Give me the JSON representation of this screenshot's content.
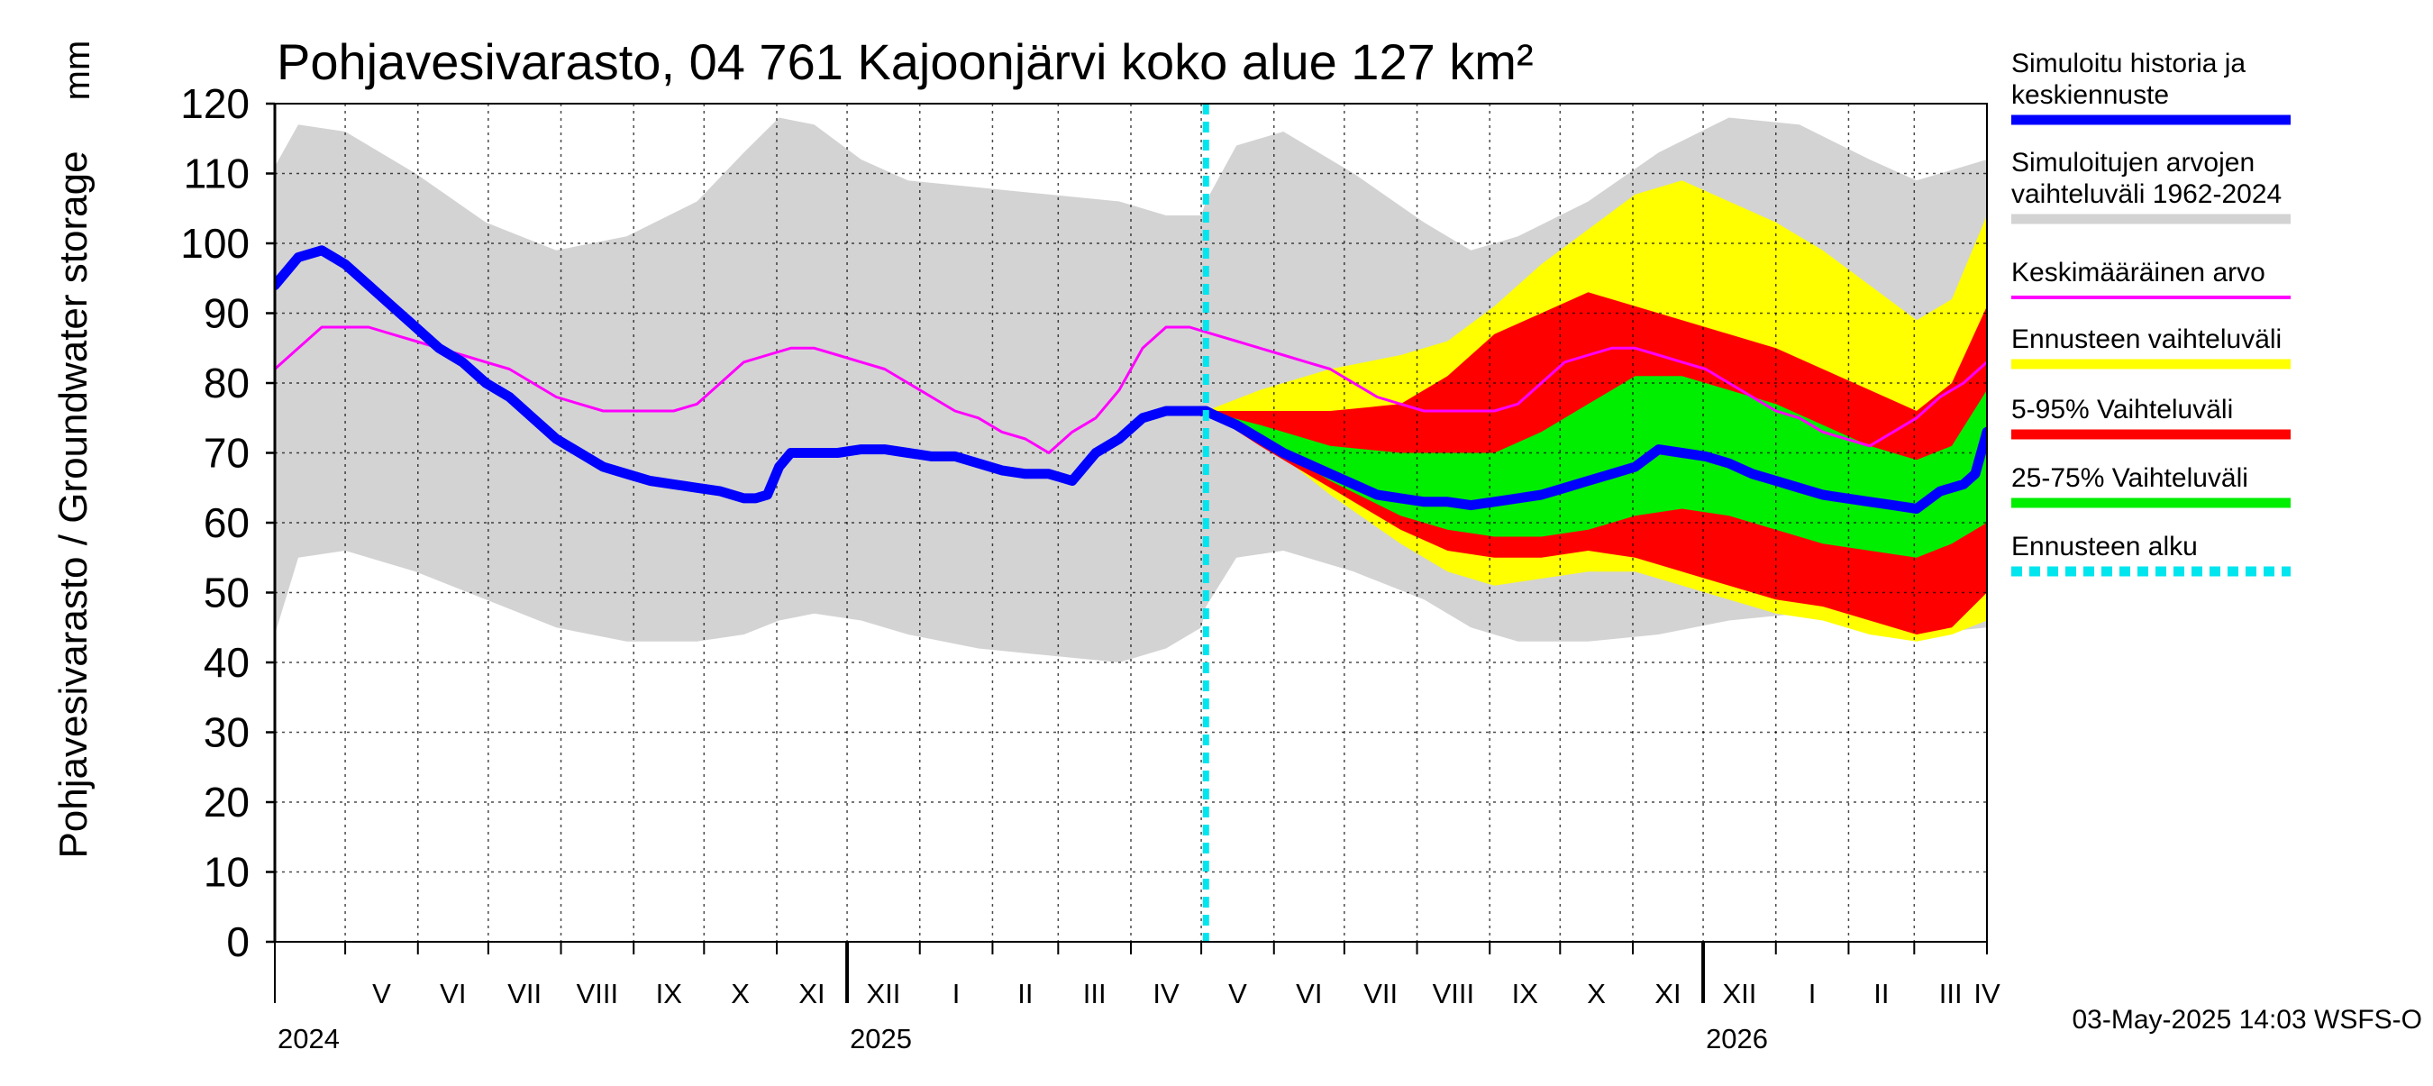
{
  "chart_data": {
    "type": "area",
    "title": "Pohjavesivarasto, 04 761 Kajoonjärvi koko alue 127 km²",
    "ylabel": "Pohjavesivarasto / Groundwater storage",
    "unit": "mm",
    "ylim": [
      0,
      120
    ],
    "yticks": [
      0,
      10,
      20,
      30,
      40,
      50,
      60,
      70,
      80,
      90,
      100,
      110,
      120
    ],
    "xlim_days": [
      0,
      730
    ],
    "x_unit": "days since 2024-04-01",
    "forecast_start_day": 397,
    "months": [
      {
        "label": "V",
        "start": 30,
        "end": 61
      },
      {
        "label": "VI",
        "start": 61,
        "end": 91
      },
      {
        "label": "VII",
        "start": 91,
        "end": 122
      },
      {
        "label": "VIII",
        "start": 122,
        "end": 153
      },
      {
        "label": "IX",
        "start": 153,
        "end": 183
      },
      {
        "label": "X",
        "start": 183,
        "end": 214
      },
      {
        "label": "XI",
        "start": 214,
        "end": 244
      },
      {
        "label": "XII",
        "start": 244,
        "end": 275
      },
      {
        "label": "I",
        "start": 275,
        "end": 306
      },
      {
        "label": "II",
        "start": 306,
        "end": 334
      },
      {
        "label": "III",
        "start": 334,
        "end": 365
      },
      {
        "label": "IV",
        "start": 365,
        "end": 395
      },
      {
        "label": "V",
        "start": 395,
        "end": 426
      },
      {
        "label": "VI",
        "start": 426,
        "end": 456
      },
      {
        "label": "VII",
        "start": 456,
        "end": 487
      },
      {
        "label": "VIII",
        "start": 487,
        "end": 518
      },
      {
        "label": "IX",
        "start": 518,
        "end": 548
      },
      {
        "label": "X",
        "start": 548,
        "end": 579
      },
      {
        "label": "XI",
        "start": 579,
        "end": 609
      },
      {
        "label": "XII",
        "start": 609,
        "end": 640
      },
      {
        "label": "I",
        "start": 640,
        "end": 671
      },
      {
        "label": "II",
        "start": 671,
        "end": 699
      },
      {
        "label": "III",
        "start": 699,
        "end": 730
      },
      {
        "label": "IV",
        "start": 730,
        "end": 760
      }
    ],
    "month_lines": [
      30,
      61,
      91,
      122,
      153,
      183,
      214,
      244,
      275,
      306,
      334,
      365,
      395,
      426,
      456,
      487,
      518,
      548,
      579,
      609,
      640,
      671,
      699,
      730
    ],
    "year_lines": [
      244,
      609
    ],
    "years": [
      {
        "label": "2024",
        "day": 0
      },
      {
        "label": "2025",
        "day": 244
      },
      {
        "label": "2026",
        "day": 609
      }
    ],
    "series": [
      {
        "name": "Simuloitujen arvojen vaihteluväli 1962-2024",
        "kind": "band",
        "color": "#d3d3d3",
        "x": [
          0,
          10,
          30,
          60,
          90,
          120,
          150,
          180,
          200,
          215,
          230,
          250,
          270,
          300,
          330,
          360,
          380,
          395,
          397,
          410,
          430,
          460,
          490,
          510,
          530,
          560,
          590,
          620,
          650,
          680,
          700,
          730
        ],
        "upper": [
          111,
          117,
          116,
          110,
          103,
          99,
          101,
          106,
          113,
          118,
          117,
          112,
          109,
          108,
          107,
          106,
          104,
          104,
          106,
          114,
          116,
          110,
          103,
          99,
          101,
          106,
          113,
          118,
          117,
          112,
          109,
          112
        ],
        "lower": [
          44,
          55,
          56,
          53,
          49,
          45,
          43,
          43,
          44,
          46,
          47,
          46,
          44,
          42,
          41,
          40,
          42,
          45,
          48,
          55,
          56,
          53,
          49,
          45,
          43,
          43,
          44,
          46,
          47,
          46,
          44,
          45
        ]
      },
      {
        "name": "Ennusteen vaihteluväli",
        "kind": "band",
        "color": "#ffff00",
        "x": [
          397,
          420,
          450,
          480,
          500,
          520,
          540,
          560,
          580,
          600,
          620,
          640,
          660,
          680,
          700,
          715,
          730
        ],
        "upper": [
          76,
          79,
          82,
          84,
          86,
          91,
          97,
          102,
          107,
          109,
          106,
          103,
          99,
          94,
          89,
          92,
          104
        ],
        "lower": [
          76,
          72,
          64,
          57,
          53,
          51,
          52,
          53,
          53,
          51,
          49,
          47,
          46,
          44,
          43,
          44,
          46
        ]
      },
      {
        "name": "5-95% Vaihteluväli",
        "kind": "band",
        "color": "#ff0000",
        "x": [
          397,
          420,
          450,
          480,
          500,
          520,
          540,
          560,
          580,
          600,
          620,
          640,
          660,
          680,
          700,
          715,
          730
        ],
        "upper": [
          76,
          76,
          76,
          77,
          81,
          87,
          90,
          93,
          91,
          89,
          87,
          85,
          82,
          79,
          76,
          80,
          91
        ],
        "lower": [
          76,
          71,
          65,
          59,
          56,
          55,
          55,
          56,
          55,
          53,
          51,
          49,
          48,
          46,
          44,
          45,
          50
        ]
      },
      {
        "name": "25-75% Vaihteluväli",
        "kind": "band",
        "color": "#00ee00",
        "x": [
          397,
          420,
          450,
          480,
          500,
          520,
          540,
          560,
          580,
          600,
          620,
          640,
          660,
          680,
          700,
          715,
          730
        ],
        "upper": [
          76,
          74,
          71,
          70,
          70,
          70,
          73,
          77,
          81,
          81,
          79,
          77,
          74,
          71,
          69,
          71,
          79
        ],
        "lower": [
          76,
          72,
          66,
          61,
          59,
          58,
          58,
          59,
          61,
          62,
          61,
          59,
          57,
          56,
          55,
          57,
          60
        ]
      },
      {
        "name": "Keskimääräinen arvo",
        "kind": "line",
        "color": "#ff00ff",
        "width": 3,
        "x": [
          0,
          10,
          20,
          30,
          40,
          50,
          60,
          70,
          80,
          90,
          100,
          110,
          120,
          130,
          140,
          150,
          160,
          170,
          180,
          190,
          200,
          210,
          220,
          230,
          240,
          250,
          260,
          270,
          280,
          290,
          300,
          310,
          320,
          330,
          340,
          350,
          360,
          370,
          380,
          390,
          400,
          410,
          420,
          430,
          440,
          450,
          460,
          470,
          480,
          490,
          500,
          510,
          520,
          530,
          540,
          550,
          560,
          570,
          580,
          590,
          600,
          610,
          620,
          630,
          640,
          650,
          660,
          670,
          680,
          690,
          700,
          710,
          720,
          730
        ],
        "values": [
          82,
          85,
          88,
          88,
          88,
          87,
          86,
          85,
          84,
          83,
          82,
          80,
          78,
          77,
          76,
          76,
          76,
          76,
          77,
          80,
          83,
          84,
          85,
          85,
          84,
          83,
          82,
          80,
          78,
          76,
          75,
          73,
          72,
          70,
          73,
          75,
          79,
          85,
          88,
          88,
          87,
          86,
          85,
          84,
          83,
          82,
          80,
          78,
          77,
          76,
          76,
          76,
          76,
          77,
          80,
          83,
          84,
          85,
          85,
          84,
          83,
          82,
          80,
          78,
          76,
          75,
          73,
          72,
          71,
          73,
          75,
          78,
          80,
          83
        ]
      },
      {
        "name": "Simuloitu historia ja keskiennuste",
        "kind": "line",
        "color": "#0000ff",
        "width": 11,
        "x": [
          0,
          10,
          20,
          30,
          40,
          50,
          60,
          70,
          80,
          90,
          100,
          110,
          120,
          130,
          140,
          150,
          160,
          170,
          180,
          190,
          200,
          205,
          210,
          215,
          220,
          230,
          240,
          250,
          260,
          270,
          280,
          290,
          300,
          310,
          320,
          330,
          335,
          340,
          350,
          360,
          370,
          380,
          390,
          397,
          400,
          410,
          420,
          430,
          440,
          450,
          460,
          470,
          480,
          490,
          500,
          510,
          520,
          530,
          540,
          550,
          560,
          570,
          580,
          590,
          600,
          610,
          620,
          630,
          640,
          650,
          660,
          670,
          680,
          690,
          700,
          710,
          720,
          725,
          730
        ],
        "values": [
          94,
          98,
          99,
          97,
          94,
          91,
          88,
          85,
          83,
          80,
          78,
          75,
          72,
          70,
          68,
          67,
          66,
          65.5,
          65,
          64.5,
          63.5,
          63.5,
          64,
          68,
          70,
          70,
          70,
          70.5,
          70.5,
          70,
          69.5,
          69.5,
          68.5,
          67.5,
          67,
          67,
          66.5,
          66,
          70,
          72,
          75,
          76,
          76,
          76,
          75.5,
          74,
          72,
          70,
          68.5,
          67,
          65.5,
          64,
          63.5,
          63,
          63,
          62.5,
          63,
          63.5,
          64,
          65,
          66,
          67,
          68,
          70.5,
          70,
          69.5,
          68.5,
          67,
          66,
          65,
          64,
          63.5,
          63,
          62.5,
          62,
          64.5,
          65.5,
          67,
          73
        ]
      }
    ],
    "legend": [
      {
        "label": "Simuloitu historia ja keskiennuste",
        "color": "#0000ff",
        "style": "solid"
      },
      {
        "label": "Simuloitujen arvojen vaihteluväli 1962-2024",
        "color": "#d3d3d3",
        "style": "solid"
      },
      {
        "label": "Keskimääräinen arvo",
        "color": "#ff00ff",
        "style": "thin"
      },
      {
        "label": "Ennusteen vaihteluväli",
        "color": "#ffff00",
        "style": "solid"
      },
      {
        "label": "5-95% Vaihteluväli",
        "color": "#ff0000",
        "style": "solid"
      },
      {
        "label": "25-75% Vaihteluväli",
        "color": "#00ee00",
        "style": "solid"
      },
      {
        "label": "Ennusteen alku",
        "color": "#00e5ee",
        "style": "dashed"
      }
    ],
    "legend_lines": [
      [
        "Simuloitu historia ja",
        "keskiennuste"
      ],
      [
        "Simuloitujen arvojen",
        "vaihteluväli 1962-2024"
      ],
      [
        "Keskimääräinen arvo"
      ],
      [
        "Ennusteen vaihteluväli"
      ],
      [
        "5-95% Vaihteluväli"
      ],
      [
        "25-75% Vaihteluväli"
      ],
      [
        "Ennusteen alku"
      ]
    ],
    "legend_placement": "right",
    "grid": true,
    "footer": "03-May-2025 14:03 WSFS-O"
  }
}
